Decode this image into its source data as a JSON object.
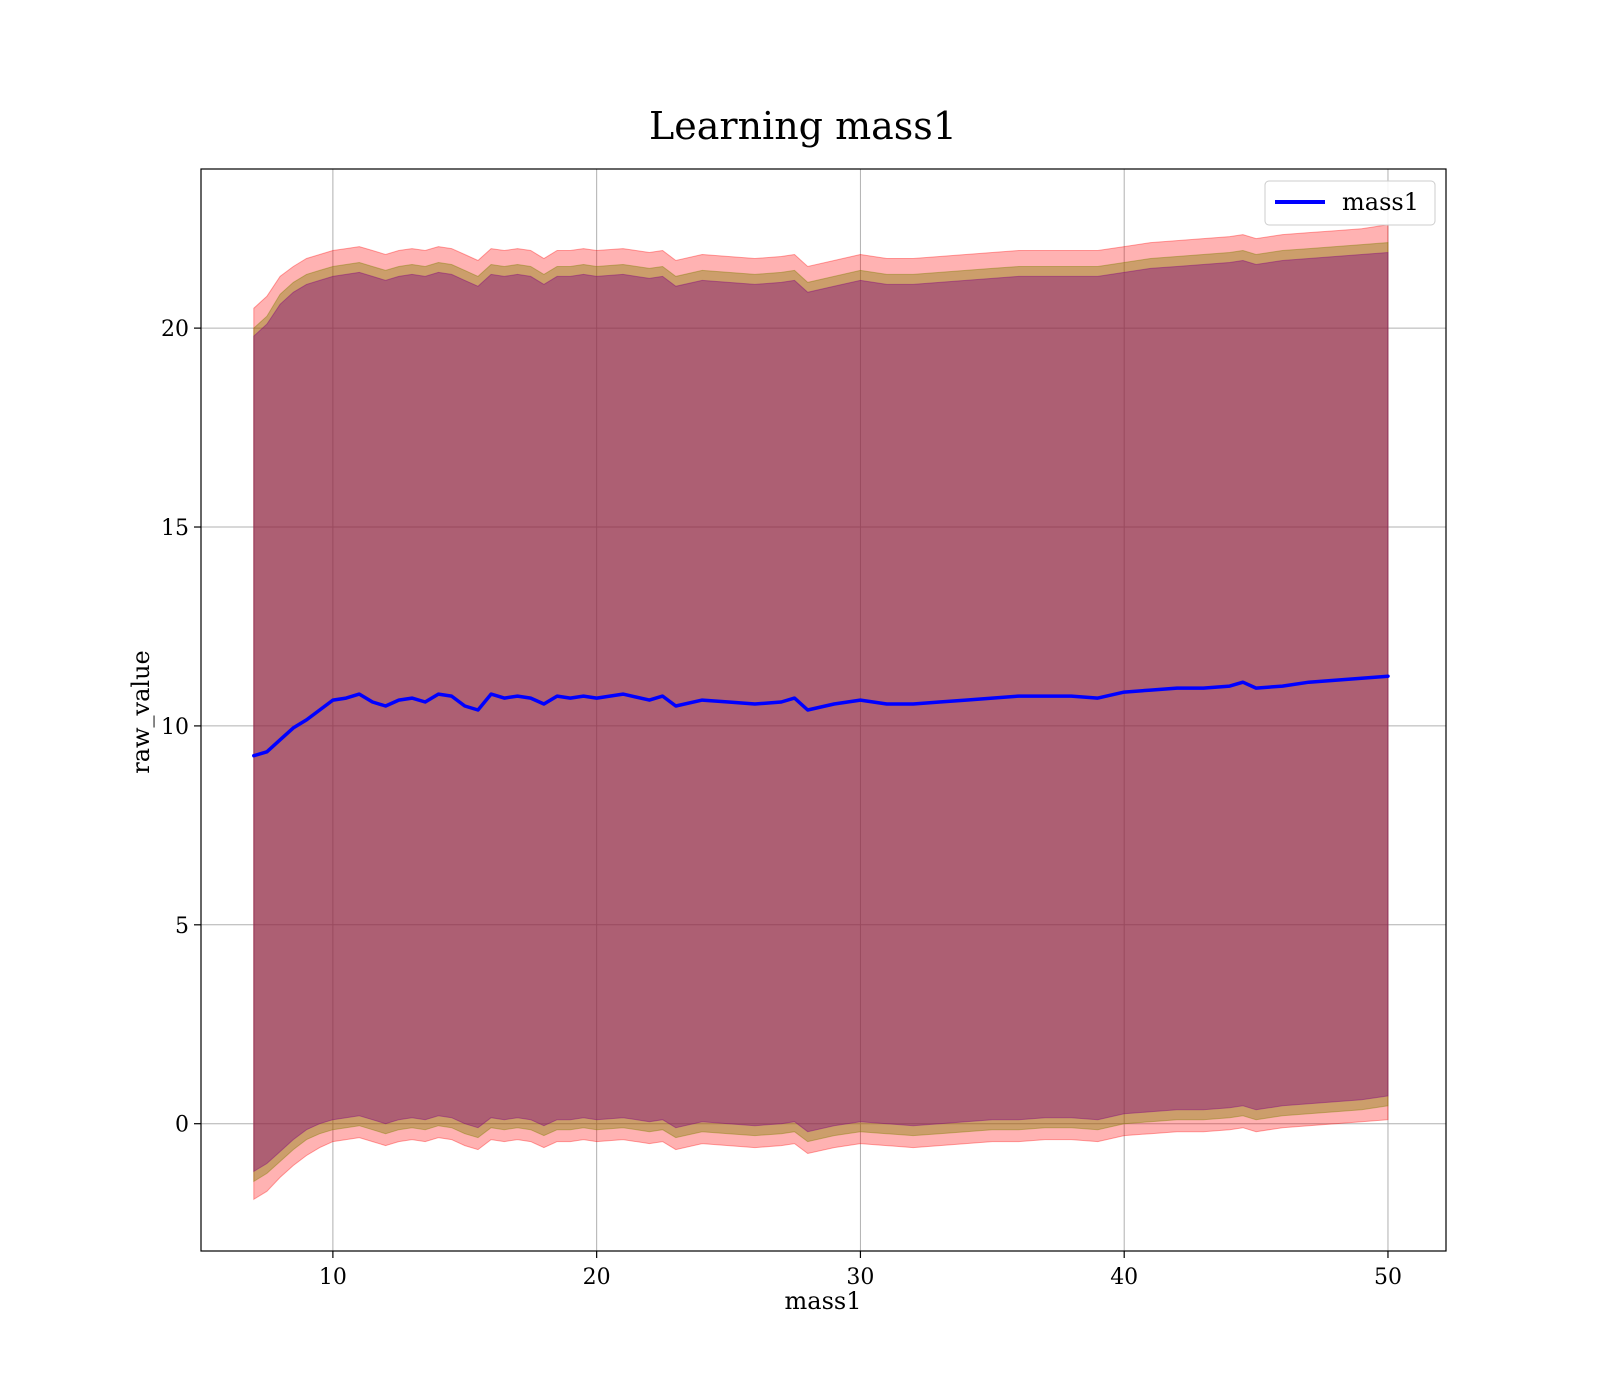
{
  "chart_data": {
    "type": "line",
    "title": "Learning mass1",
    "xlabel": "mass1",
    "ylabel": "raw_value",
    "xlim": [
      5,
      52.2
    ],
    "ylim": [
      -3.2,
      24.0
    ],
    "xticks": [
      10,
      20,
      30,
      40,
      50
    ],
    "yticks": [
      0,
      5,
      10,
      15,
      20
    ],
    "grid": true,
    "legend": {
      "position": "top-right",
      "entries": [
        "mass1"
      ]
    },
    "colors": {
      "line": "#0000ff",
      "outer_band": "#ff0000",
      "middle_band": "#808000",
      "inner_band": "#800080",
      "grid": "#b0b0b0"
    },
    "series": [
      {
        "name": "mass1",
        "x": [
          7.0,
          7.5,
          8.0,
          8.5,
          9.0,
          9.5,
          10.0,
          10.5,
          11.0,
          11.5,
          12.0,
          12.5,
          13.0,
          13.5,
          14.0,
          14.5,
          15.0,
          15.5,
          16.0,
          16.5,
          17.0,
          17.5,
          18.0,
          18.5,
          19.0,
          19.5,
          20.0,
          21.0,
          22.0,
          22.5,
          23.0,
          24.0,
          25.0,
          26.0,
          27.0,
          27.5,
          28.0,
          29.0,
          30.0,
          31.0,
          32.0,
          33.0,
          34.0,
          35.0,
          36.0,
          37.0,
          38.0,
          39.0,
          40.0,
          41.0,
          42.0,
          43.0,
          44.0,
          44.5,
          45.0,
          46.0,
          47.0,
          48.0,
          49.0,
          50.0
        ],
        "y": [
          9.25,
          9.35,
          9.65,
          9.95,
          10.15,
          10.4,
          10.65,
          10.7,
          10.8,
          10.6,
          10.5,
          10.65,
          10.7,
          10.6,
          10.8,
          10.75,
          10.5,
          10.4,
          10.8,
          10.7,
          10.75,
          10.7,
          10.55,
          10.75,
          10.7,
          10.75,
          10.7,
          10.8,
          10.65,
          10.75,
          10.5,
          10.65,
          10.6,
          10.55,
          10.6,
          10.7,
          10.4,
          10.55,
          10.65,
          10.55,
          10.55,
          10.6,
          10.65,
          10.7,
          10.75,
          10.75,
          10.75,
          10.7,
          10.85,
          10.9,
          10.95,
          10.95,
          11.0,
          11.1,
          10.95,
          11.0,
          11.1,
          11.15,
          11.2,
          11.25
        ],
        "inner_upper": [
          19.8,
          20.1,
          20.6,
          20.9,
          21.1,
          21.2,
          21.3,
          21.35,
          21.4,
          21.3,
          21.2,
          21.3,
          21.35,
          21.3,
          21.4,
          21.35,
          21.2,
          21.05,
          21.35,
          21.3,
          21.35,
          21.3,
          21.1,
          21.3,
          21.3,
          21.35,
          21.3,
          21.35,
          21.25,
          21.3,
          21.05,
          21.2,
          21.15,
          21.1,
          21.15,
          21.2,
          20.9,
          21.05,
          21.2,
          21.1,
          21.1,
          21.15,
          21.2,
          21.25,
          21.3,
          21.3,
          21.3,
          21.3,
          21.4,
          21.5,
          21.55,
          21.6,
          21.65,
          21.7,
          21.6,
          21.7,
          21.75,
          21.8,
          21.85,
          21.9
        ],
        "inner_lower": [
          -1.2,
          -1.0,
          -0.7,
          -0.4,
          -0.15,
          0.0,
          0.1,
          0.15,
          0.2,
          0.1,
          0.0,
          0.1,
          0.15,
          0.1,
          0.2,
          0.15,
          0.0,
          -0.1,
          0.15,
          0.1,
          0.15,
          0.1,
          -0.05,
          0.1,
          0.1,
          0.15,
          0.1,
          0.15,
          0.05,
          0.1,
          -0.1,
          0.05,
          0.0,
          -0.05,
          0.0,
          0.05,
          -0.2,
          -0.05,
          0.05,
          0.0,
          -0.05,
          0.0,
          0.05,
          0.1,
          0.1,
          0.15,
          0.15,
          0.1,
          0.25,
          0.3,
          0.35,
          0.35,
          0.4,
          0.45,
          0.35,
          0.45,
          0.5,
          0.55,
          0.6,
          0.7
        ],
        "middle_upper": [
          20.0,
          20.3,
          20.85,
          21.15,
          21.35,
          21.45,
          21.55,
          21.6,
          21.65,
          21.55,
          21.45,
          21.55,
          21.6,
          21.55,
          21.65,
          21.6,
          21.45,
          21.3,
          21.6,
          21.55,
          21.6,
          21.55,
          21.35,
          21.55,
          21.55,
          21.6,
          21.55,
          21.6,
          21.5,
          21.55,
          21.3,
          21.45,
          21.4,
          21.35,
          21.4,
          21.45,
          21.15,
          21.3,
          21.45,
          21.35,
          21.35,
          21.4,
          21.45,
          21.5,
          21.55,
          21.55,
          21.55,
          21.55,
          21.65,
          21.75,
          21.8,
          21.85,
          21.9,
          21.95,
          21.85,
          21.95,
          22.0,
          22.05,
          22.1,
          22.15
        ],
        "middle_lower": [
          -1.45,
          -1.25,
          -0.95,
          -0.65,
          -0.4,
          -0.25,
          -0.15,
          -0.1,
          -0.05,
          -0.15,
          -0.25,
          -0.15,
          -0.1,
          -0.15,
          -0.05,
          -0.1,
          -0.25,
          -0.35,
          -0.1,
          -0.15,
          -0.1,
          -0.15,
          -0.3,
          -0.15,
          -0.15,
          -0.1,
          -0.15,
          -0.1,
          -0.2,
          -0.15,
          -0.35,
          -0.2,
          -0.25,
          -0.3,
          -0.25,
          -0.2,
          -0.45,
          -0.3,
          -0.2,
          -0.25,
          -0.3,
          -0.25,
          -0.2,
          -0.15,
          -0.15,
          -0.1,
          -0.1,
          -0.15,
          0.0,
          0.05,
          0.1,
          0.1,
          0.15,
          0.2,
          0.1,
          0.2,
          0.25,
          0.3,
          0.35,
          0.45
        ],
        "outer_upper": [
          20.5,
          20.8,
          21.3,
          21.55,
          21.75,
          21.85,
          21.95,
          22.0,
          22.05,
          21.95,
          21.85,
          21.95,
          22.0,
          21.95,
          22.05,
          22.0,
          21.85,
          21.7,
          22.0,
          21.95,
          22.0,
          21.95,
          21.75,
          21.95,
          21.95,
          22.0,
          21.95,
          22.0,
          21.9,
          21.95,
          21.7,
          21.85,
          21.8,
          21.75,
          21.8,
          21.85,
          21.55,
          21.7,
          21.85,
          21.75,
          21.75,
          21.8,
          21.85,
          21.9,
          21.95,
          21.95,
          21.95,
          21.95,
          22.05,
          22.15,
          22.2,
          22.25,
          22.3,
          22.35,
          22.25,
          22.35,
          22.4,
          22.45,
          22.5,
          22.6
        ],
        "outer_lower": [
          -1.9,
          -1.7,
          -1.35,
          -1.05,
          -0.8,
          -0.6,
          -0.45,
          -0.4,
          -0.35,
          -0.45,
          -0.55,
          -0.45,
          -0.4,
          -0.45,
          -0.35,
          -0.4,
          -0.55,
          -0.65,
          -0.4,
          -0.45,
          -0.4,
          -0.45,
          -0.6,
          -0.45,
          -0.45,
          -0.4,
          -0.45,
          -0.4,
          -0.5,
          -0.45,
          -0.65,
          -0.5,
          -0.55,
          -0.6,
          -0.55,
          -0.5,
          -0.75,
          -0.6,
          -0.5,
          -0.55,
          -0.6,
          -0.55,
          -0.5,
          -0.45,
          -0.45,
          -0.4,
          -0.4,
          -0.45,
          -0.3,
          -0.25,
          -0.2,
          -0.2,
          -0.15,
          -0.1,
          -0.2,
          -0.1,
          -0.05,
          0.0,
          0.05,
          0.1
        ]
      }
    ]
  }
}
